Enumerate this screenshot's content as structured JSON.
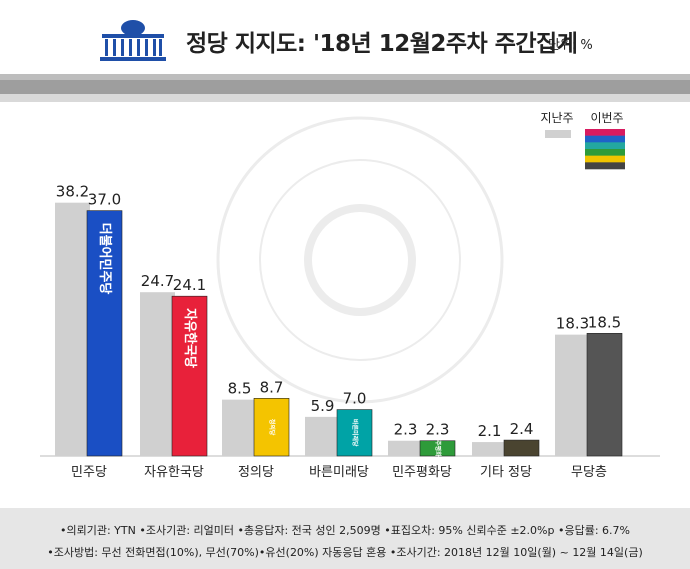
{
  "header": {
    "title": "정당 지지도: '18년 12월2주차 주간집계",
    "unit": "단위: %"
  },
  "chart_data": {
    "type": "bar",
    "categories": [
      "민주당",
      "자유한국당",
      "정의당",
      "바른미래당",
      "민주평화당",
      "기타 정당",
      "무당층"
    ],
    "series": [
      {
        "name": "지난주",
        "values": [
          38.2,
          24.7,
          8.5,
          5.9,
          2.3,
          2.1,
          18.3
        ],
        "color": "#d0d0d0"
      },
      {
        "name": "이번주",
        "values": [
          37.0,
          24.1,
          8.7,
          7.0,
          2.3,
          2.4,
          18.5
        ],
        "colors": [
          "#1a4fc4",
          "#e8213a",
          "#f4c400",
          "#00a3a6",
          "#2e9b3a",
          "#4a4430",
          "#555555"
        ]
      }
    ],
    "legend": "top-right",
    "ylim": [
      0,
      40
    ],
    "party_logos": [
      "더불어민주당",
      "자유한국당",
      "정의당",
      "바른미래당",
      "민주평화당",
      "",
      ""
    ]
  },
  "footer": {
    "line1": "•의뢰기관: YTN •조사기관: 리얼미터 •총응답자: 전국 성인 2,509명 •표집오차: 95% 신뢰수준 ±2.0%p •응답률: 6.7%",
    "line2": "•조사방법: 무선 전화면접(10%), 무선(70%)•유선(20%) 자동응답 혼용 •조사기간: 2018년 12월 10일(월) ~ 12월 14일(금)"
  },
  "legend_swatch_colors": [
    "#d81b60",
    "#1e63c8",
    "#23a8a0",
    "#2e9b3a",
    "#f0c400",
    "#444444"
  ]
}
